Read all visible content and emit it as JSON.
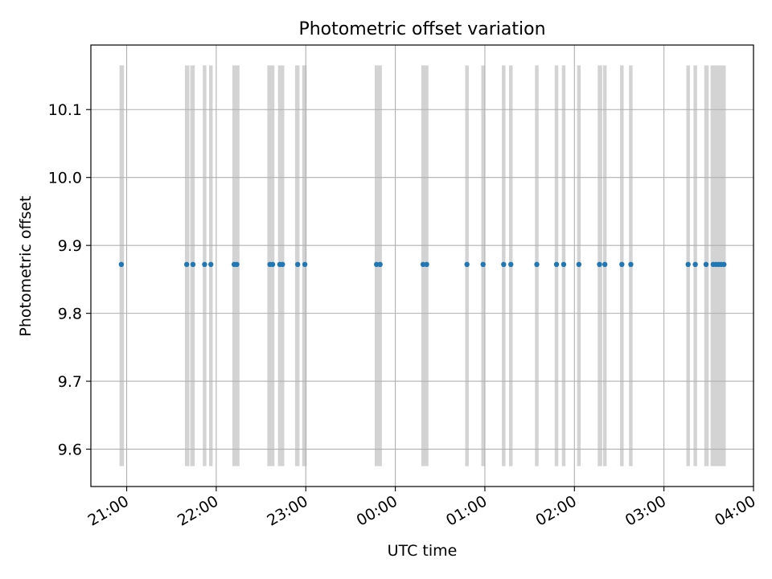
{
  "chart_data": {
    "type": "scatter",
    "title": "Photometric offset variation",
    "xlabel": "UTC time",
    "ylabel": "Photometric offset",
    "grid": true,
    "x_axis": {
      "unit": "hours since 20:00 UTC on the plotted night (ticks wrap past midnight)",
      "lim": [
        20.6,
        28.0
      ],
      "ticks": [
        {
          "value": 21,
          "label": "21:00"
        },
        {
          "value": 22,
          "label": "22:00"
        },
        {
          "value": 23,
          "label": "23:00"
        },
        {
          "value": 24,
          "label": "00:00"
        },
        {
          "value": 25,
          "label": "01:00"
        },
        {
          "value": 26,
          "label": "02:00"
        },
        {
          "value": 27,
          "label": "03:00"
        },
        {
          "value": 28,
          "label": "04:00"
        }
      ]
    },
    "y_axis": {
      "lim": [
        9.545,
        10.195
      ],
      "ticks": [
        {
          "value": 9.6,
          "label": "9.6"
        },
        {
          "value": 9.7,
          "label": "9.7"
        },
        {
          "value": 9.8,
          "label": "9.8"
        },
        {
          "value": 9.9,
          "label": "9.9"
        },
        {
          "value": 10.0,
          "label": "10.0"
        },
        {
          "value": 10.1,
          "label": "10.1"
        }
      ]
    },
    "exposure_bands": {
      "color": "#d3d3d3",
      "y_range": [
        9.575,
        10.165
      ],
      "intervals": [
        [
          20.92,
          20.97
        ],
        [
          21.65,
          21.7
        ],
        [
          21.71,
          21.76
        ],
        [
          21.85,
          21.89
        ],
        [
          21.92,
          21.96
        ],
        [
          22.18,
          22.26
        ],
        [
          22.57,
          22.65
        ],
        [
          22.69,
          22.76
        ],
        [
          22.88,
          22.93
        ],
        [
          22.96,
          23.01
        ],
        [
          23.77,
          23.85
        ],
        [
          24.29,
          24.37
        ],
        [
          24.78,
          24.82
        ],
        [
          24.96,
          25.0
        ],
        [
          25.19,
          25.23
        ],
        [
          25.27,
          25.31
        ],
        [
          25.56,
          25.6
        ],
        [
          25.78,
          25.82
        ],
        [
          25.86,
          25.9
        ],
        [
          26.03,
          26.07
        ],
        [
          26.26,
          26.31
        ],
        [
          26.32,
          26.36
        ],
        [
          26.51,
          26.55
        ],
        [
          26.61,
          26.65
        ],
        [
          27.25,
          27.29
        ],
        [
          27.33,
          27.37
        ],
        [
          27.45,
          27.5
        ],
        [
          27.52,
          27.69
        ]
      ]
    },
    "series": [
      {
        "color": "#1f77b4",
        "x": [
          20.94,
          21.67,
          21.74,
          21.87,
          21.94,
          22.2,
          22.23,
          22.6,
          22.63,
          22.71,
          22.74,
          22.91,
          22.99,
          23.79,
          23.83,
          24.31,
          24.35,
          24.8,
          24.98,
          25.21,
          25.29,
          25.58,
          25.8,
          25.88,
          26.05,
          26.28,
          26.34,
          26.53,
          26.63,
          27.27,
          27.35,
          27.47,
          27.55,
          27.58,
          27.61,
          27.64,
          27.67
        ],
        "y": [
          9.872,
          9.872,
          9.872,
          9.872,
          9.872,
          9.872,
          9.872,
          9.872,
          9.872,
          9.872,
          9.872,
          9.872,
          9.872,
          9.872,
          9.872,
          9.872,
          9.872,
          9.872,
          9.872,
          9.872,
          9.872,
          9.872,
          9.872,
          9.872,
          9.872,
          9.872,
          9.872,
          9.872,
          9.872,
          9.872,
          9.872,
          9.872,
          9.872,
          9.872,
          9.872,
          9.872,
          9.872
        ]
      }
    ]
  }
}
